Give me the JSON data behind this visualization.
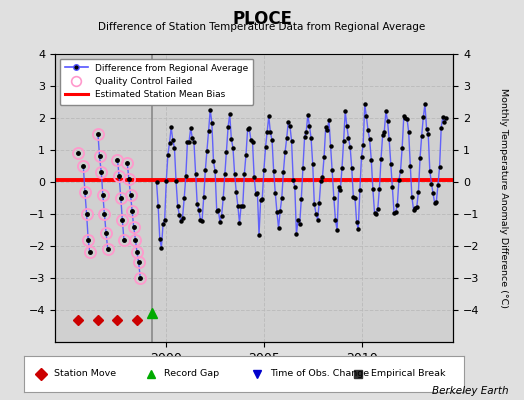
{
  "title": "PLOCE",
  "subtitle": "Difference of Station Temperature Data from Regional Average",
  "ylabel": "Monthly Temperature Anomaly Difference (°C)",
  "credit": "Berkeley Earth",
  "ylim": [
    -5,
    4
  ],
  "yticks": [
    -4,
    -3,
    -2,
    -1,
    0,
    1,
    2,
    3,
    4
  ],
  "xlim_start": 1994.3,
  "xlim_end": 2014.7,
  "xticks": [
    2000,
    2005,
    2010
  ],
  "bias_value": 0.05,
  "bg_color": "#e0e0e0",
  "plot_bg_color": "#d0d0d0",
  "main_line_color": "#5555ff",
  "bias_line_color": "#ff0000",
  "station_move_color": "#cc0000",
  "record_gap_color": "#00aa00",
  "time_obs_color": "#0000cc",
  "qc_failed_color": "#ff99cc",
  "vert_line_x": 1999.25,
  "bottom_legend_items": [
    {
      "marker": "D",
      "color": "#cc0000",
      "label": "Station Move"
    },
    {
      "marker": "^",
      "color": "#00aa00",
      "label": "Record Gap"
    },
    {
      "marker": "v",
      "color": "#0000cc",
      "label": "Time of Obs. Change"
    },
    {
      "marker": "s",
      "color": "#333333",
      "label": "Empirical Break"
    }
  ]
}
